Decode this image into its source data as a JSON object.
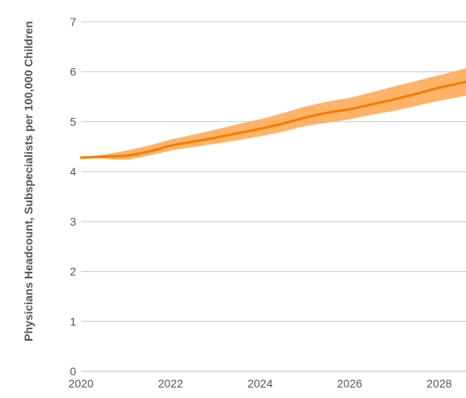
{
  "chart_data": {
    "type": "line",
    "title": "",
    "xlabel": "",
    "ylabel": "Physicians Headcount, Subspecialists per 100,000 Children",
    "xlim": [
      2020,
      2028.6
    ],
    "ylim": [
      0,
      7
    ],
    "x_ticks": [
      2020,
      2022,
      2024,
      2026,
      2028
    ],
    "y_ticks": [
      0,
      1,
      2,
      3,
      4,
      5,
      6,
      7
    ],
    "grid": true,
    "colors": {
      "line": "#f57c00",
      "band": "#ffa64d",
      "grid": "#c8c8c8",
      "text": "#555555"
    },
    "x": [
      2020,
      2020.5,
      2021,
      2021.5,
      2022,
      2022.5,
      2023,
      2023.5,
      2024,
      2024.5,
      2025,
      2025.5,
      2026,
      2026.5,
      2027,
      2027.5,
      2028,
      2028.6
    ],
    "series": [
      {
        "values": [
          4.28,
          4.3,
          4.32,
          4.4,
          4.52,
          4.6,
          4.68,
          4.77,
          4.86,
          4.96,
          5.08,
          5.18,
          5.25,
          5.35,
          5.45,
          5.56,
          5.68,
          5.8
        ],
        "lower": [
          4.28,
          4.26,
          4.24,
          4.32,
          4.42,
          4.49,
          4.56,
          4.63,
          4.71,
          4.8,
          4.91,
          4.98,
          5.05,
          5.14,
          5.22,
          5.32,
          5.42,
          5.52
        ],
        "upper": [
          4.28,
          4.34,
          4.42,
          4.52,
          4.64,
          4.74,
          4.84,
          4.95,
          5.05,
          5.17,
          5.3,
          5.4,
          5.48,
          5.59,
          5.71,
          5.82,
          5.93,
          6.07
        ]
      }
    ]
  }
}
